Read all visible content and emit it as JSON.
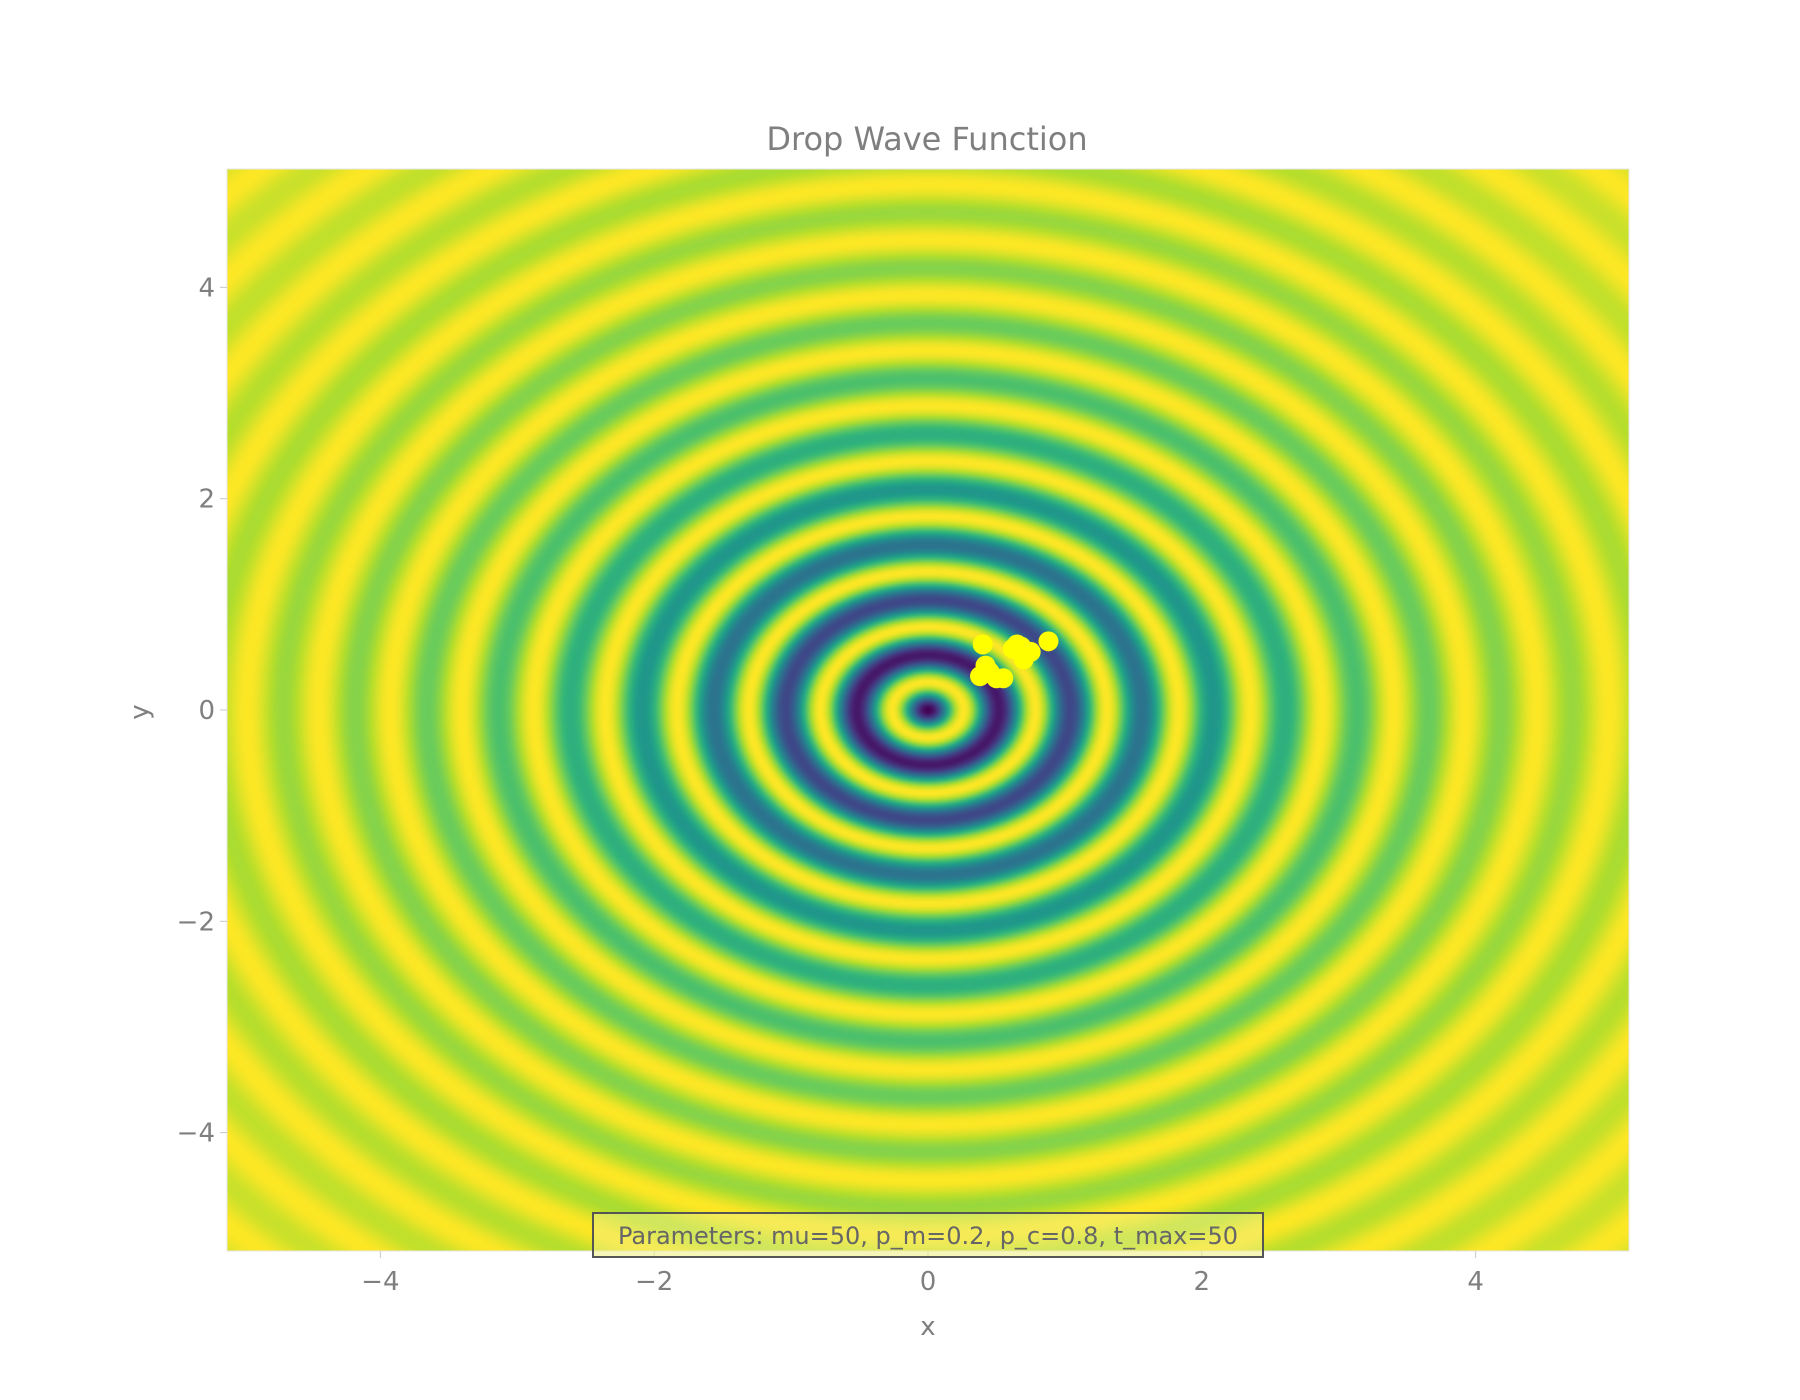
{
  "chart_data": {
    "type": "heatmap",
    "title": "Drop Wave Function",
    "xlabel": "x",
    "ylabel": "y",
    "xlim": [
      -5.12,
      5.12
    ],
    "ylim": [
      -5.12,
      5.12
    ],
    "x_ticks": [
      -4,
      -2,
      0,
      2,
      4
    ],
    "y_ticks": [
      -4,
      -2,
      0,
      2,
      4
    ],
    "x_tick_labels": [
      "−4",
      "−2",
      "0",
      "2",
      "4"
    ],
    "y_tick_labels": [
      "−4",
      "−2",
      "0",
      "2",
      "4"
    ],
    "function": "-(1 + cos(12*sqrt(x^2+y^2))) / (0.5*(x^2+y^2) + 2)",
    "colorscale": "Viridis",
    "colorbar": false,
    "grid": false,
    "points": {
      "color": "#ffff00",
      "x": [
        0.4,
        0.5,
        0.45,
        0.38,
        0.65,
        0.75,
        0.7,
        0.62,
        0.88,
        0.55,
        0.42,
        0.68
      ],
      "y": [
        0.62,
        0.3,
        0.36,
        0.32,
        0.62,
        0.55,
        0.48,
        0.58,
        0.65,
        0.3,
        0.42,
        0.6
      ]
    },
    "annotation": "Parameters: mu=50, p_m=0.2, p_c=0.8, t_max=50"
  }
}
